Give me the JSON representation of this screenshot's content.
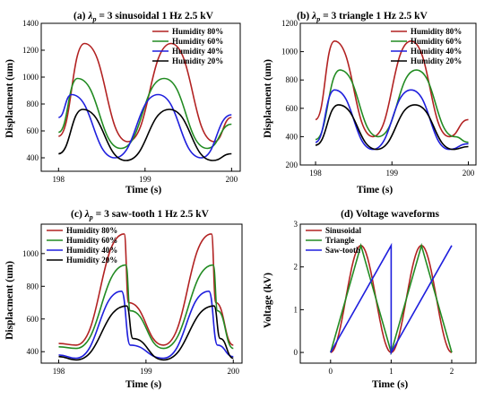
{
  "figure": {
    "colors": {
      "h80": "#b22222",
      "h60": "#228b22",
      "h40": "#1f1fdd",
      "h20": "#000000",
      "sinusoidal": "#b22222",
      "triangle": "#228b22",
      "sawtooth": "#1f1fdd"
    }
  },
  "chart_data": [
    {
      "type": "line",
      "title_prefix": "(a) ",
      "title_suffix": " = 3 sinusoidal 1 Hz 2.5 kV",
      "xlabel": "Time (s)",
      "ylabel": "Displacment (um)",
      "xlim": [
        197.8,
        200.1
      ],
      "ylim": [
        300,
        1400
      ],
      "xticks": [
        198,
        199,
        200
      ],
      "yticks": [
        400,
        600,
        800,
        1000,
        1200,
        1400
      ],
      "legend": "top-right",
      "series": [
        {
          "name": "Humidity 80%",
          "color_key": "h80",
          "x": [
            198.0,
            198.3,
            198.8,
            199.3,
            199.8,
            200.0
          ],
          "y": [
            560,
            1250,
            520,
            1250,
            520,
            700
          ]
        },
        {
          "name": "Humidity 60%",
          "color_key": "h60",
          "x": [
            198.0,
            198.22,
            198.72,
            199.22,
            199.72,
            200.0
          ],
          "y": [
            590,
            990,
            470,
            990,
            470,
            650
          ]
        },
        {
          "name": "Humidity 40%",
          "color_key": "h40",
          "x": [
            198.0,
            198.15,
            198.65,
            199.15,
            199.65,
            200.0
          ],
          "y": [
            700,
            870,
            400,
            870,
            400,
            720
          ]
        },
        {
          "name": "Humidity 20%",
          "color_key": "h20",
          "x": [
            198.0,
            198.28,
            198.78,
            199.28,
            199.78,
            200.0
          ],
          "y": [
            430,
            760,
            380,
            760,
            380,
            430
          ]
        }
      ]
    },
    {
      "type": "line",
      "title_prefix": "(b) ",
      "title_suffix": " = 3 triangle 1 Hz 2.5 kV",
      "xlabel": "Time (s)",
      "ylabel": "Displacment (um)",
      "xlim": [
        197.8,
        200.1
      ],
      "ylim": [
        200,
        1200
      ],
      "xticks": [
        198,
        199,
        200
      ],
      "yticks": [
        200,
        400,
        600,
        800,
        1000,
        1200
      ],
      "legend": "top-right",
      "series": [
        {
          "name": "Humidity 80%",
          "color_key": "h80",
          "x": [
            198.0,
            198.25,
            198.75,
            199.25,
            199.75,
            200.0
          ],
          "y": [
            520,
            1075,
            400,
            1075,
            400,
            520
          ]
        },
        {
          "name": "Humidity 60%",
          "color_key": "h60",
          "x": [
            198.0,
            198.32,
            198.82,
            199.32,
            199.82,
            200.0
          ],
          "y": [
            380,
            870,
            400,
            870,
            400,
            360
          ]
        },
        {
          "name": "Humidity 40%",
          "color_key": "h40",
          "x": [
            198.0,
            198.25,
            198.75,
            199.25,
            199.75,
            200.0
          ],
          "y": [
            360,
            730,
            310,
            730,
            310,
            350
          ]
        },
        {
          "name": "Humidity 20%",
          "color_key": "h20",
          "x": [
            198.0,
            198.3,
            198.8,
            199.3,
            199.8,
            200.0
          ],
          "y": [
            340,
            625,
            310,
            625,
            310,
            330
          ]
        }
      ]
    },
    {
      "type": "line",
      "title_prefix": "(c) ",
      "title_suffix": " = 3 saw-tooth 1 Hz 2.5 kV",
      "xlabel": "Time (s)",
      "ylabel": "Displacment (um)",
      "xlim": [
        197.8,
        200.1
      ],
      "ylim": [
        330,
        1180
      ],
      "xticks": [
        198,
        199,
        200
      ],
      "yticks": [
        400,
        600,
        800,
        1000
      ],
      "legend": "top-left",
      "series": [
        {
          "name": "Humidity 80%",
          "color_key": "h80",
          "x": [
            198.0,
            198.2,
            198.75,
            198.8,
            199.2,
            199.75,
            199.8,
            200.0
          ],
          "y": [
            450,
            440,
            1120,
            700,
            440,
            1120,
            700,
            440
          ]
        },
        {
          "name": "Humidity 60%",
          "color_key": "h60",
          "x": [
            198.0,
            198.2,
            198.77,
            198.82,
            199.2,
            199.77,
            199.82,
            200.0
          ],
          "y": [
            430,
            420,
            930,
            650,
            420,
            930,
            650,
            420
          ]
        },
        {
          "name": "Humidity 40%",
          "color_key": "h40",
          "x": [
            198.0,
            198.2,
            198.72,
            198.82,
            199.2,
            199.72,
            199.82,
            200.0
          ],
          "y": [
            380,
            360,
            770,
            440,
            360,
            770,
            440,
            370
          ]
        },
        {
          "name": "Humidity 20%",
          "color_key": "h20",
          "x": [
            198.0,
            198.2,
            198.78,
            198.85,
            199.2,
            199.78,
            199.85,
            200.0
          ],
          "y": [
            370,
            350,
            680,
            480,
            350,
            680,
            480,
            360
          ]
        }
      ]
    },
    {
      "type": "line",
      "title": "(d) Voltage waveforms",
      "xlabel": "Time (s)",
      "ylabel": "Voltage (kV)",
      "xlim": [
        -0.5,
        2.4
      ],
      "ylim": [
        -0.25,
        3
      ],
      "xticks": [
        0,
        1,
        2
      ],
      "yticks": [
        0,
        1,
        2,
        3
      ],
      "legend": "top-left",
      "series": [
        {
          "name": "Sinusoidal",
          "color_key": "sinusoidal",
          "kind": "sine",
          "x": [
            0,
            2
          ],
          "amplitude": 2.5,
          "frequency": 1
        },
        {
          "name": "Triangle",
          "color_key": "triangle",
          "x": [
            0,
            0.5,
            1.0,
            1.5,
            2.0
          ],
          "y": [
            0,
            2.5,
            0,
            2.5,
            0
          ]
        },
        {
          "name": "Saw-tooth",
          "color_key": "sawtooth",
          "x": [
            0,
            1.0,
            1.0,
            2.0
          ],
          "y": [
            0,
            2.5,
            0,
            2.5
          ]
        }
      ]
    }
  ]
}
